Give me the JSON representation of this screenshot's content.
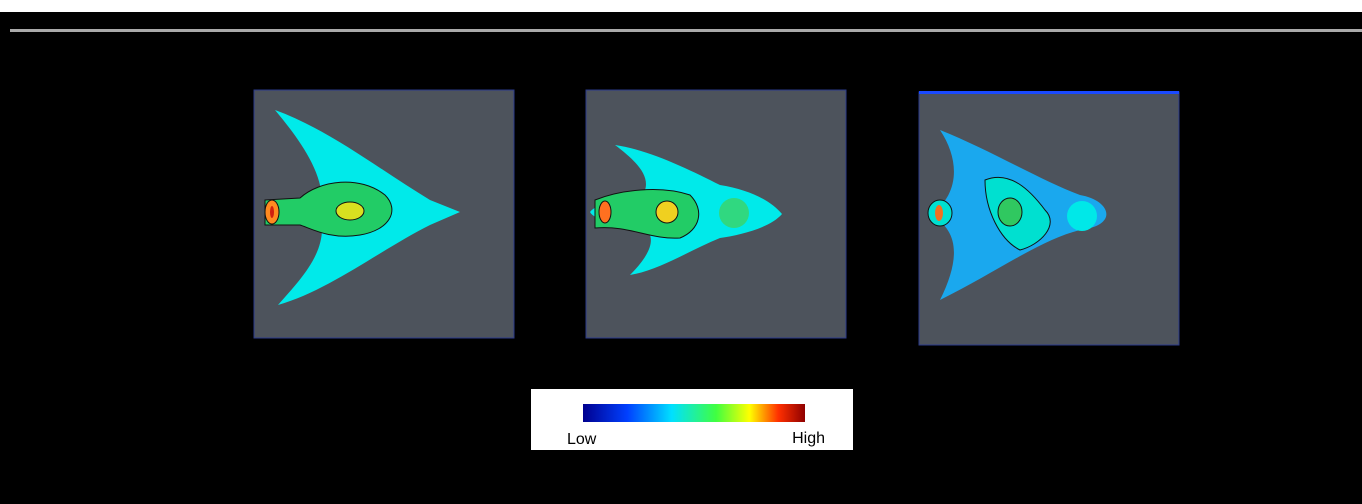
{
  "colorbar": {
    "low_label": "Low",
    "high_label": "High"
  }
}
